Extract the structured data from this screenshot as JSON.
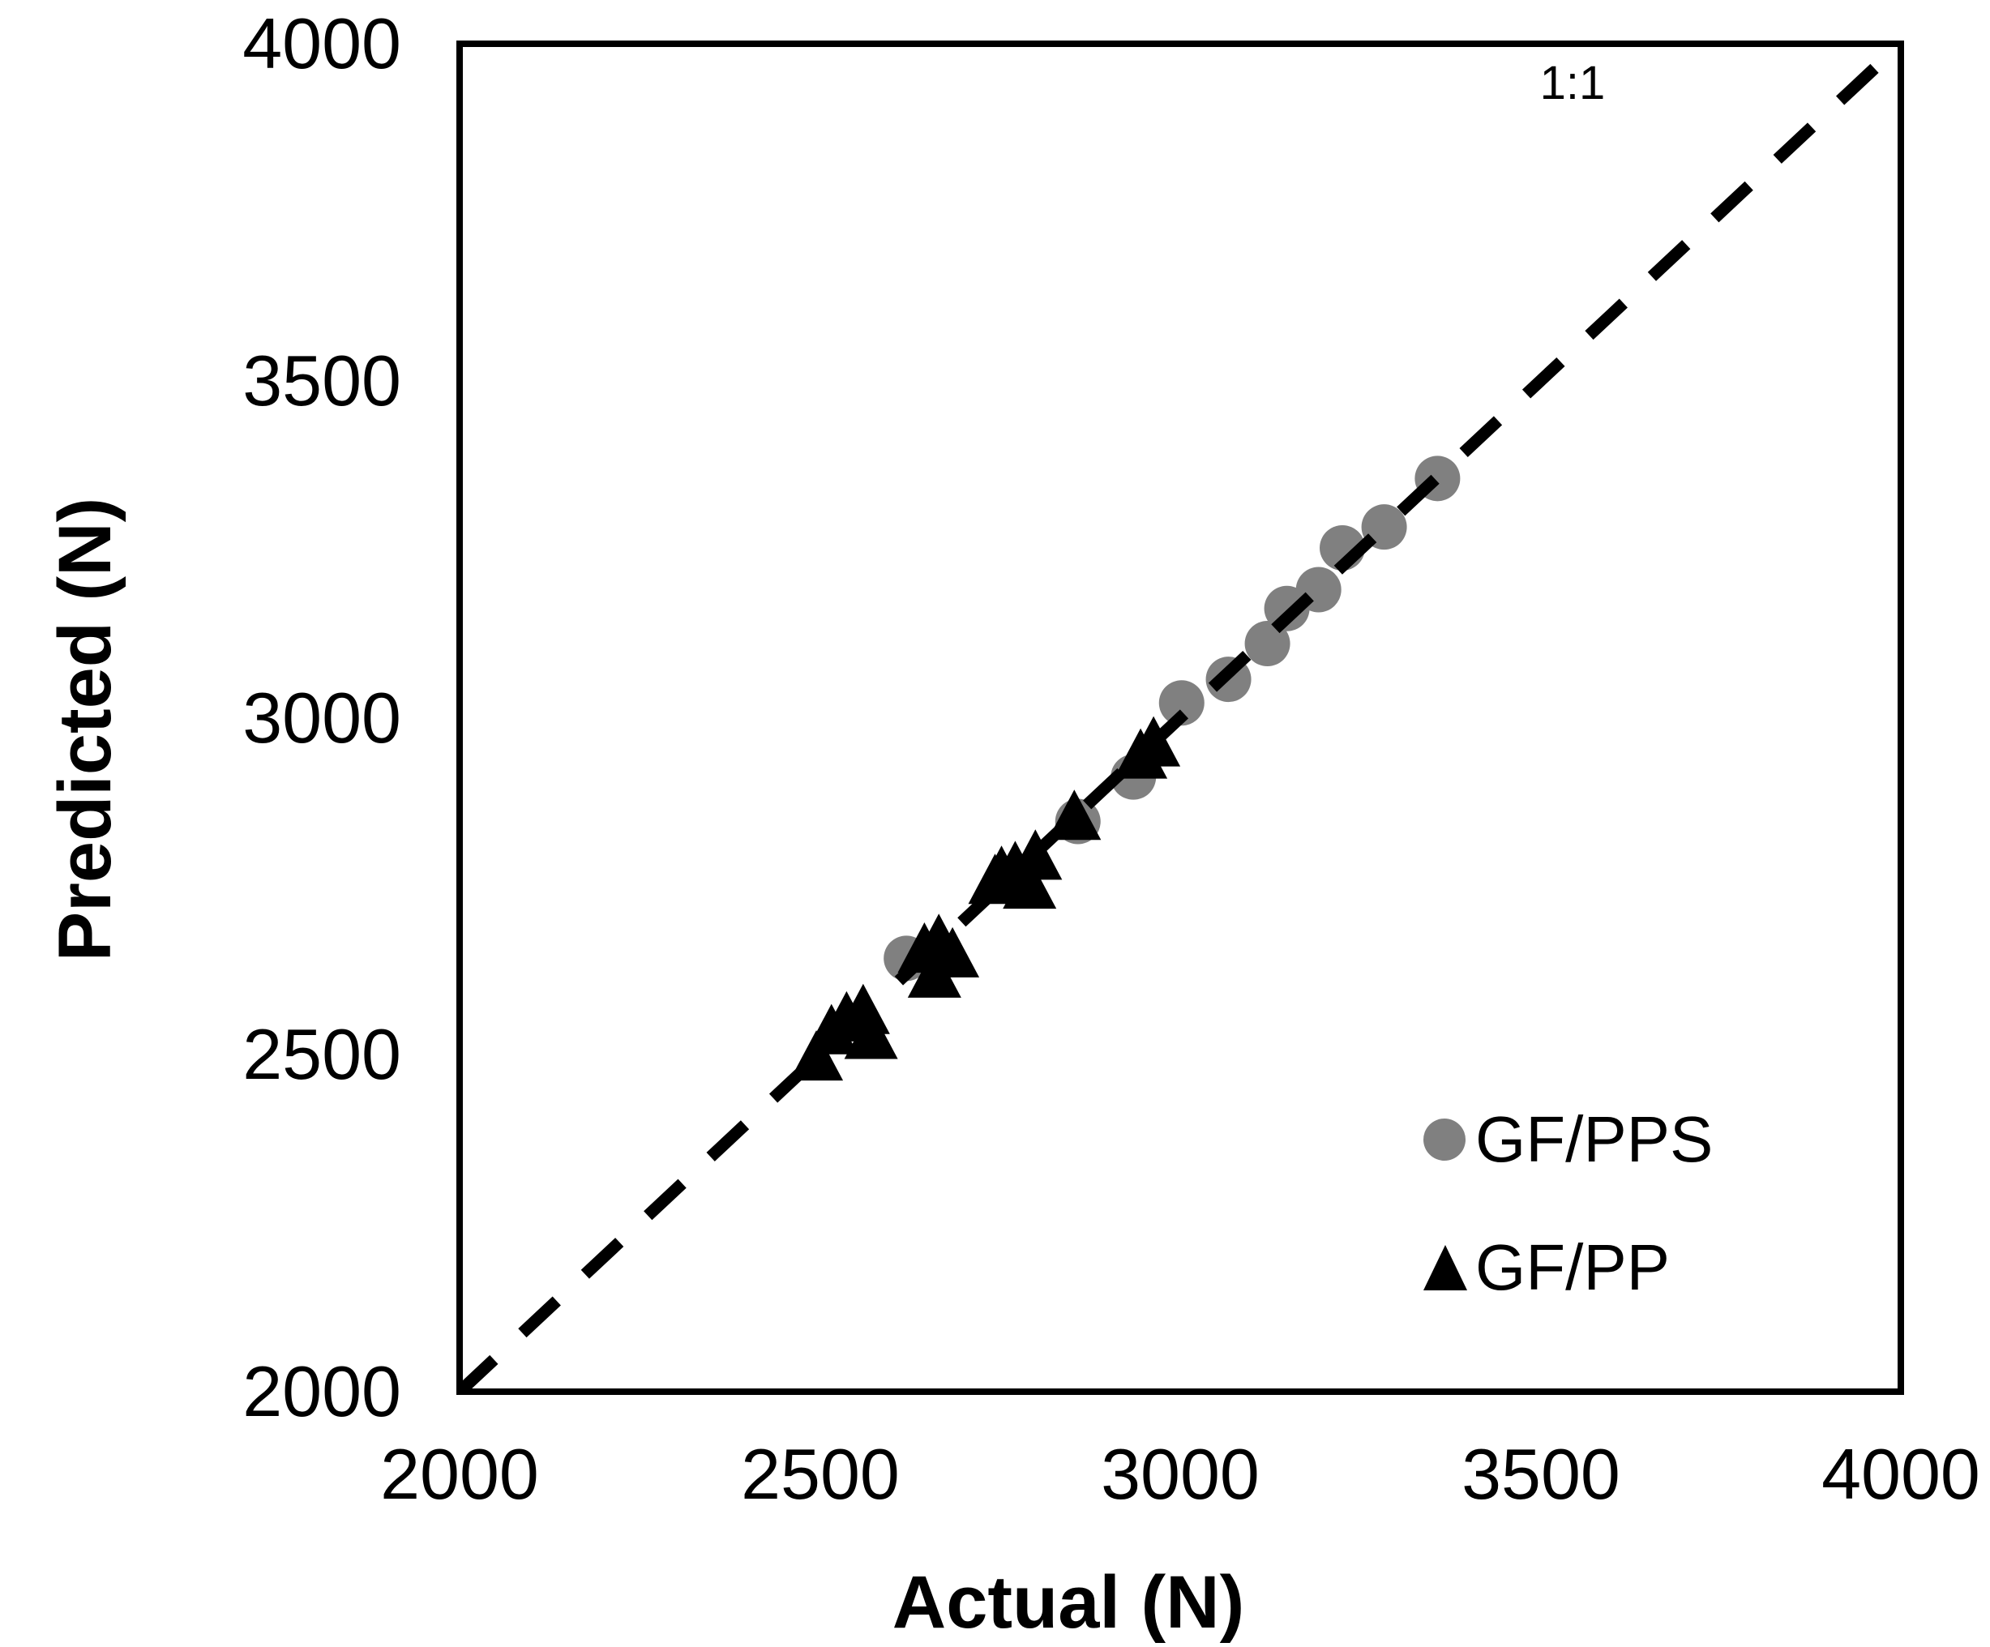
{
  "figure": {
    "background": "#ffffff",
    "frame_color": "#000000"
  },
  "chart_data": {
    "type": "scatter",
    "title": "",
    "xlabel": "Actual (N)",
    "ylabel": "Predicted (N)",
    "xlim": [
      2000,
      4000
    ],
    "ylim": [
      2000,
      4000
    ],
    "xticks": [
      2000,
      2500,
      3000,
      3500,
      4000
    ],
    "yticks": [
      2000,
      2500,
      3000,
      3500,
      4000
    ],
    "grid": false,
    "frame": true,
    "reference_line": {
      "label": "1:1",
      "from": [
        2000,
        2000
      ],
      "to": [
        4000,
        4000
      ],
      "style": "dashed",
      "color": "#000000",
      "stroke_width": 15,
      "dash_pattern": "58 48"
    },
    "legend": {
      "position": "lower-right"
    },
    "series": [
      {
        "name": "GF/PPS",
        "marker": "circle",
        "color": "#808080",
        "marker_size": 56,
        "points": [
          [
            2620,
            2643
          ],
          [
            2858,
            2846
          ],
          [
            2935,
            2912
          ],
          [
            3002,
            3022
          ],
          [
            3067,
            3057
          ],
          [
            3121,
            3110
          ],
          [
            3148,
            3162
          ],
          [
            3192,
            3190
          ],
          [
            3225,
            3252
          ],
          [
            3283,
            3283
          ],
          [
            3357,
            3355
          ]
        ]
      },
      {
        "name": "GF/PP",
        "marker": "triangle",
        "color": "#000000",
        "marker_size": 66,
        "points": [
          [
            2495,
            2495
          ],
          [
            2516,
            2534
          ],
          [
            2537,
            2553
          ],
          [
            2560,
            2564
          ],
          [
            2571,
            2527
          ],
          [
            2645,
            2655
          ],
          [
            2659,
            2618
          ],
          [
            2665,
            2668
          ],
          [
            2684,
            2648
          ],
          [
            2743,
            2757
          ],
          [
            2752,
            2769
          ],
          [
            2771,
            2776
          ],
          [
            2791,
            2750
          ],
          [
            2799,
            2793
          ],
          [
            2853,
            2852
          ],
          [
            2945,
            2943
          ],
          [
            2963,
            2961
          ]
        ]
      }
    ]
  }
}
